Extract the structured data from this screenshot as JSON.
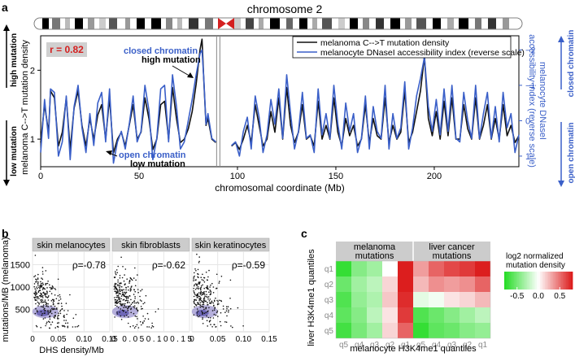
{
  "colors": {
    "black": "#111111",
    "blue": "#3a5fc8",
    "red": "#d42020",
    "green": "#22dd22",
    "strip_bg": "#cccccc",
    "grid": "#e6e6e6",
    "density": "#7a6fc0"
  },
  "chart_data": [
    {
      "id": "a",
      "panel_label": "a",
      "type": "line",
      "title": "chromosome 2",
      "xlabel": "chromosomal coordinate (Mb)",
      "ylabel_left": "melanoma C-->T mutation density",
      "ylabel_right": "melanocyte DNaseI accessibility index (reverse scale)",
      "ylabel_right_l1": "melanocyte DNaseI",
      "ylabel_right_l2": "accessibility index (reverse scale)",
      "xlim": [
        0,
        243
      ],
      "xticks": [
        0,
        50,
        100,
        150,
        200
      ],
      "ylim_left": [
        0.6,
        2.5
      ],
      "yticks_left": [
        1,
        2
      ],
      "ylim_right": [
        1.3,
        -2.4
      ],
      "yticks_right": [
        -2,
        -1,
        0,
        1
      ],
      "yticklabels_right": [
        "−2",
        "−1",
        "0",
        "1"
      ],
      "correlation": "r = 0.82",
      "side_high": "high mutation",
      "side_low": "low mutation",
      "side_closed": "closed chromatin",
      "side_open": "open chromatin",
      "annotations": [
        "closed chromatin",
        "high mutation",
        "open chromatin",
        "low mutation"
      ],
      "legend": [
        "melanoma C-->T mutation density",
        "melanocyte DNaseI accessibility index (reverse scale)"
      ],
      "centromere_gap": [
        89,
        97
      ],
      "series": [
        {
          "name": "melanoma C-->T mutation density",
          "axis": "left",
          "color": "black",
          "x": [
            0,
            2,
            4,
            5,
            7,
            9,
            11,
            13,
            15,
            17,
            19,
            21,
            23,
            25,
            27,
            29,
            31,
            33,
            35,
            37,
            39,
            41,
            43,
            45,
            47,
            49,
            51,
            53,
            55,
            57,
            59,
            61,
            63,
            65,
            67,
            69,
            71,
            73,
            75,
            77,
            79,
            81,
            82,
            83,
            84,
            85,
            87,
            89,
            97,
            99,
            101,
            103,
            105,
            107,
            109,
            111,
            113,
            115,
            117,
            119,
            121,
            123,
            125,
            127,
            129,
            131,
            133,
            135,
            137,
            139,
            141,
            143,
            145,
            147,
            149,
            151,
            153,
            155,
            157,
            159,
            161,
            163,
            165,
            167,
            169,
            171,
            173,
            175,
            177,
            179,
            181,
            183,
            185,
            187,
            189,
            191,
            193,
            195,
            197,
            199,
            201,
            203,
            205,
            207,
            209,
            211,
            213,
            215,
            217,
            219,
            221,
            223,
            225,
            227,
            229,
            231,
            233,
            235,
            237,
            239,
            241,
            243
          ],
          "values": [
            0.95,
            1.5,
            1.1,
            1.7,
            1.6,
            0.9,
            1.1,
            1.6,
            0.85,
            1.45,
            1.7,
            1.2,
            0.9,
            1.3,
            1.0,
            1.35,
            1.5,
            1.0,
            1.6,
            0.8,
            1.0,
            1.1,
            0.9,
            1.2,
            1.5,
            1.0,
            1.1,
            1.6,
            1.3,
            0.85,
            1.0,
            1.5,
            1.55,
            1.0,
            1.75,
            1.3,
            0.95,
            1.0,
            1.15,
            1.4,
            1.8,
            2.3,
            2.45,
            1.8,
            1.2,
            1.3,
            1.0,
            0.95,
            0.9,
            0.95,
            0.85,
            1.0,
            1.2,
            0.95,
            1.5,
            1.2,
            0.9,
            1.0,
            1.4,
            1.1,
            1.6,
            1.0,
            1.75,
            1.2,
            0.95,
            1.1,
            1.5,
            1.0,
            1.05,
            0.9,
            1.55,
            1.0,
            1.2,
            1.0,
            1.6,
            1.1,
            0.9,
            1.3,
            1.05,
            1.2,
            0.9,
            1.0,
            1.5,
            0.95,
            1.3,
            1.05,
            1.0,
            1.6,
            0.95,
            1.2,
            1.0,
            1.1,
            1.7,
            0.95,
            1.1,
            1.4,
            1.7,
            2.2,
            1.3,
            1.05,
            1.4,
            1.0,
            1.55,
            1.05,
            1.6,
            1.0,
            1.0,
            1.5,
            1.15,
            1.0,
            1.6,
            1.0,
            1.2,
            1.5,
            1.0,
            1.3,
            1.0,
            1.5,
            1.05,
            1.2,
            0.95,
            1.05
          ]
        },
        {
          "name": "melanocyte DNaseI accessibility index (reverse scale)",
          "axis": "right",
          "color": "blue",
          "x": [
            0,
            2,
            4,
            5,
            7,
            9,
            11,
            13,
            15,
            17,
            19,
            21,
            23,
            25,
            27,
            29,
            31,
            33,
            35,
            37,
            39,
            41,
            43,
            45,
            47,
            49,
            51,
            53,
            55,
            57,
            59,
            61,
            63,
            65,
            67,
            69,
            71,
            73,
            75,
            77,
            79,
            81,
            82,
            83,
            84,
            85,
            87,
            89,
            97,
            99,
            101,
            103,
            105,
            107,
            109,
            111,
            113,
            115,
            117,
            119,
            121,
            123,
            125,
            127,
            129,
            131,
            133,
            135,
            137,
            139,
            141,
            143,
            145,
            147,
            149,
            151,
            153,
            155,
            157,
            159,
            161,
            163,
            165,
            167,
            169,
            171,
            173,
            175,
            177,
            179,
            181,
            183,
            185,
            187,
            189,
            191,
            193,
            195,
            197,
            199,
            201,
            203,
            205,
            207,
            209,
            211,
            213,
            215,
            217,
            219,
            221,
            223,
            225,
            227,
            229,
            231,
            233,
            235,
            237,
            239,
            241,
            243
          ],
          "values": [
            0.9,
            -0.6,
            0.5,
            -0.9,
            -0.8,
            1.0,
            0.6,
            -0.7,
            1.1,
            -0.4,
            -1.0,
            0.2,
            0.9,
            -0.2,
            0.7,
            -0.5,
            -0.8,
            0.6,
            -0.9,
            1.2,
            0.6,
            0.3,
            0.8,
            0.1,
            -0.7,
            0.6,
            0.3,
            -1.0,
            -0.3,
            1.1,
            0.5,
            -0.9,
            -1.0,
            0.6,
            -1.3,
            -0.4,
            0.8,
            0.6,
            0.0,
            -0.6,
            -1.3,
            -1.9,
            -2.0,
            -1.1,
            0.1,
            -0.2,
            0.5,
            0.6,
            0.7,
            0.6,
            1.0,
            0.3,
            -0.1,
            0.8,
            -0.7,
            -0.1,
            0.9,
            0.4,
            -0.6,
            0.1,
            -0.9,
            0.5,
            -1.3,
            -0.2,
            0.8,
            0.3,
            -0.8,
            0.5,
            0.4,
            0.9,
            -0.9,
            0.4,
            -0.2,
            0.5,
            -1.0,
            0.1,
            0.8,
            -0.5,
            0.3,
            -0.2,
            0.9,
            0.5,
            -0.7,
            0.8,
            -0.4,
            0.3,
            0.5,
            -1.0,
            0.8,
            -0.2,
            0.5,
            0.2,
            -1.1,
            0.8,
            0.2,
            -0.7,
            -1.2,
            -1.8,
            -0.4,
            0.3,
            -0.6,
            0.4,
            -0.9,
            0.3,
            -1.0,
            0.5,
            0.6,
            -0.8,
            0.0,
            0.5,
            -1.0,
            0.5,
            -0.2,
            -0.8,
            0.5,
            -0.4,
            0.6,
            -0.8,
            0.2,
            -0.2,
            0.9,
            0.4
          ]
        }
      ]
    },
    {
      "id": "b",
      "panel_label": "b",
      "type": "scatter",
      "xlabel": "DHS density/Mb",
      "ylabel": "mutations/MB (melanoma)",
      "xlim": [
        0,
        0.15
      ],
      "ylim": [
        0,
        1800
      ],
      "xticklabels": [
        "0",
        "0.05",
        "0.10",
        "0.15"
      ],
      "xticklabels_dense": "0 0.050.100.15",
      "yticks": [
        500,
        1000,
        1500
      ],
      "facets": [
        {
          "strip": "skin melanocytes",
          "rho": "ρ=-0.78"
        },
        {
          "strip": "skin fibroblasts",
          "rho": "ρ=-0.62"
        },
        {
          "strip": "skin keratinocytes",
          "rho": "ρ=-0.59"
        }
      ]
    },
    {
      "id": "c",
      "panel_label": "c",
      "type": "heatmap",
      "xlabel": "melanocyte H3K4me1 quantiles",
      "ylabel": "liver H3K4me1 quantiles",
      "group_labels": [
        [
          "melanoma",
          "mutations"
        ],
        [
          "liver cancer",
          "mutations"
        ]
      ],
      "col_labels": [
        "q5",
        "q4",
        "q3",
        "q2",
        "q1",
        "q5",
        "q4",
        "q3",
        "q2",
        "q1"
      ],
      "row_labels": [
        "q1",
        "q2",
        "q3",
        "q4",
        "q5"
      ],
      "values": [
        [
          -0.75,
          -0.45,
          -0.35,
          0.0,
          0.8,
          0.35,
          0.55,
          0.65,
          0.7,
          0.9
        ],
        [
          -0.55,
          -0.35,
          -0.25,
          0.15,
          0.9,
          0.25,
          0.4,
          0.35,
          0.4,
          0.55
        ],
        [
          -0.65,
          -0.4,
          -0.3,
          0.2,
          0.75,
          -0.1,
          -0.05,
          0.1,
          0.15,
          0.25
        ],
        [
          -0.6,
          -0.45,
          -0.25,
          0.1,
          0.7,
          -0.65,
          -0.55,
          -0.45,
          -0.35,
          -0.25
        ],
        [
          -0.7,
          -0.5,
          -0.35,
          0.15,
          0.55,
          -0.75,
          -0.6,
          -0.55,
          -0.45,
          -0.4
        ]
      ],
      "legend_title": [
        "log2 normalized",
        "mutation density"
      ],
      "legend_ticks": [
        "-0.5",
        "0.0",
        "0.5"
      ],
      "color_range": [
        -0.8,
        0.8
      ]
    }
  ]
}
